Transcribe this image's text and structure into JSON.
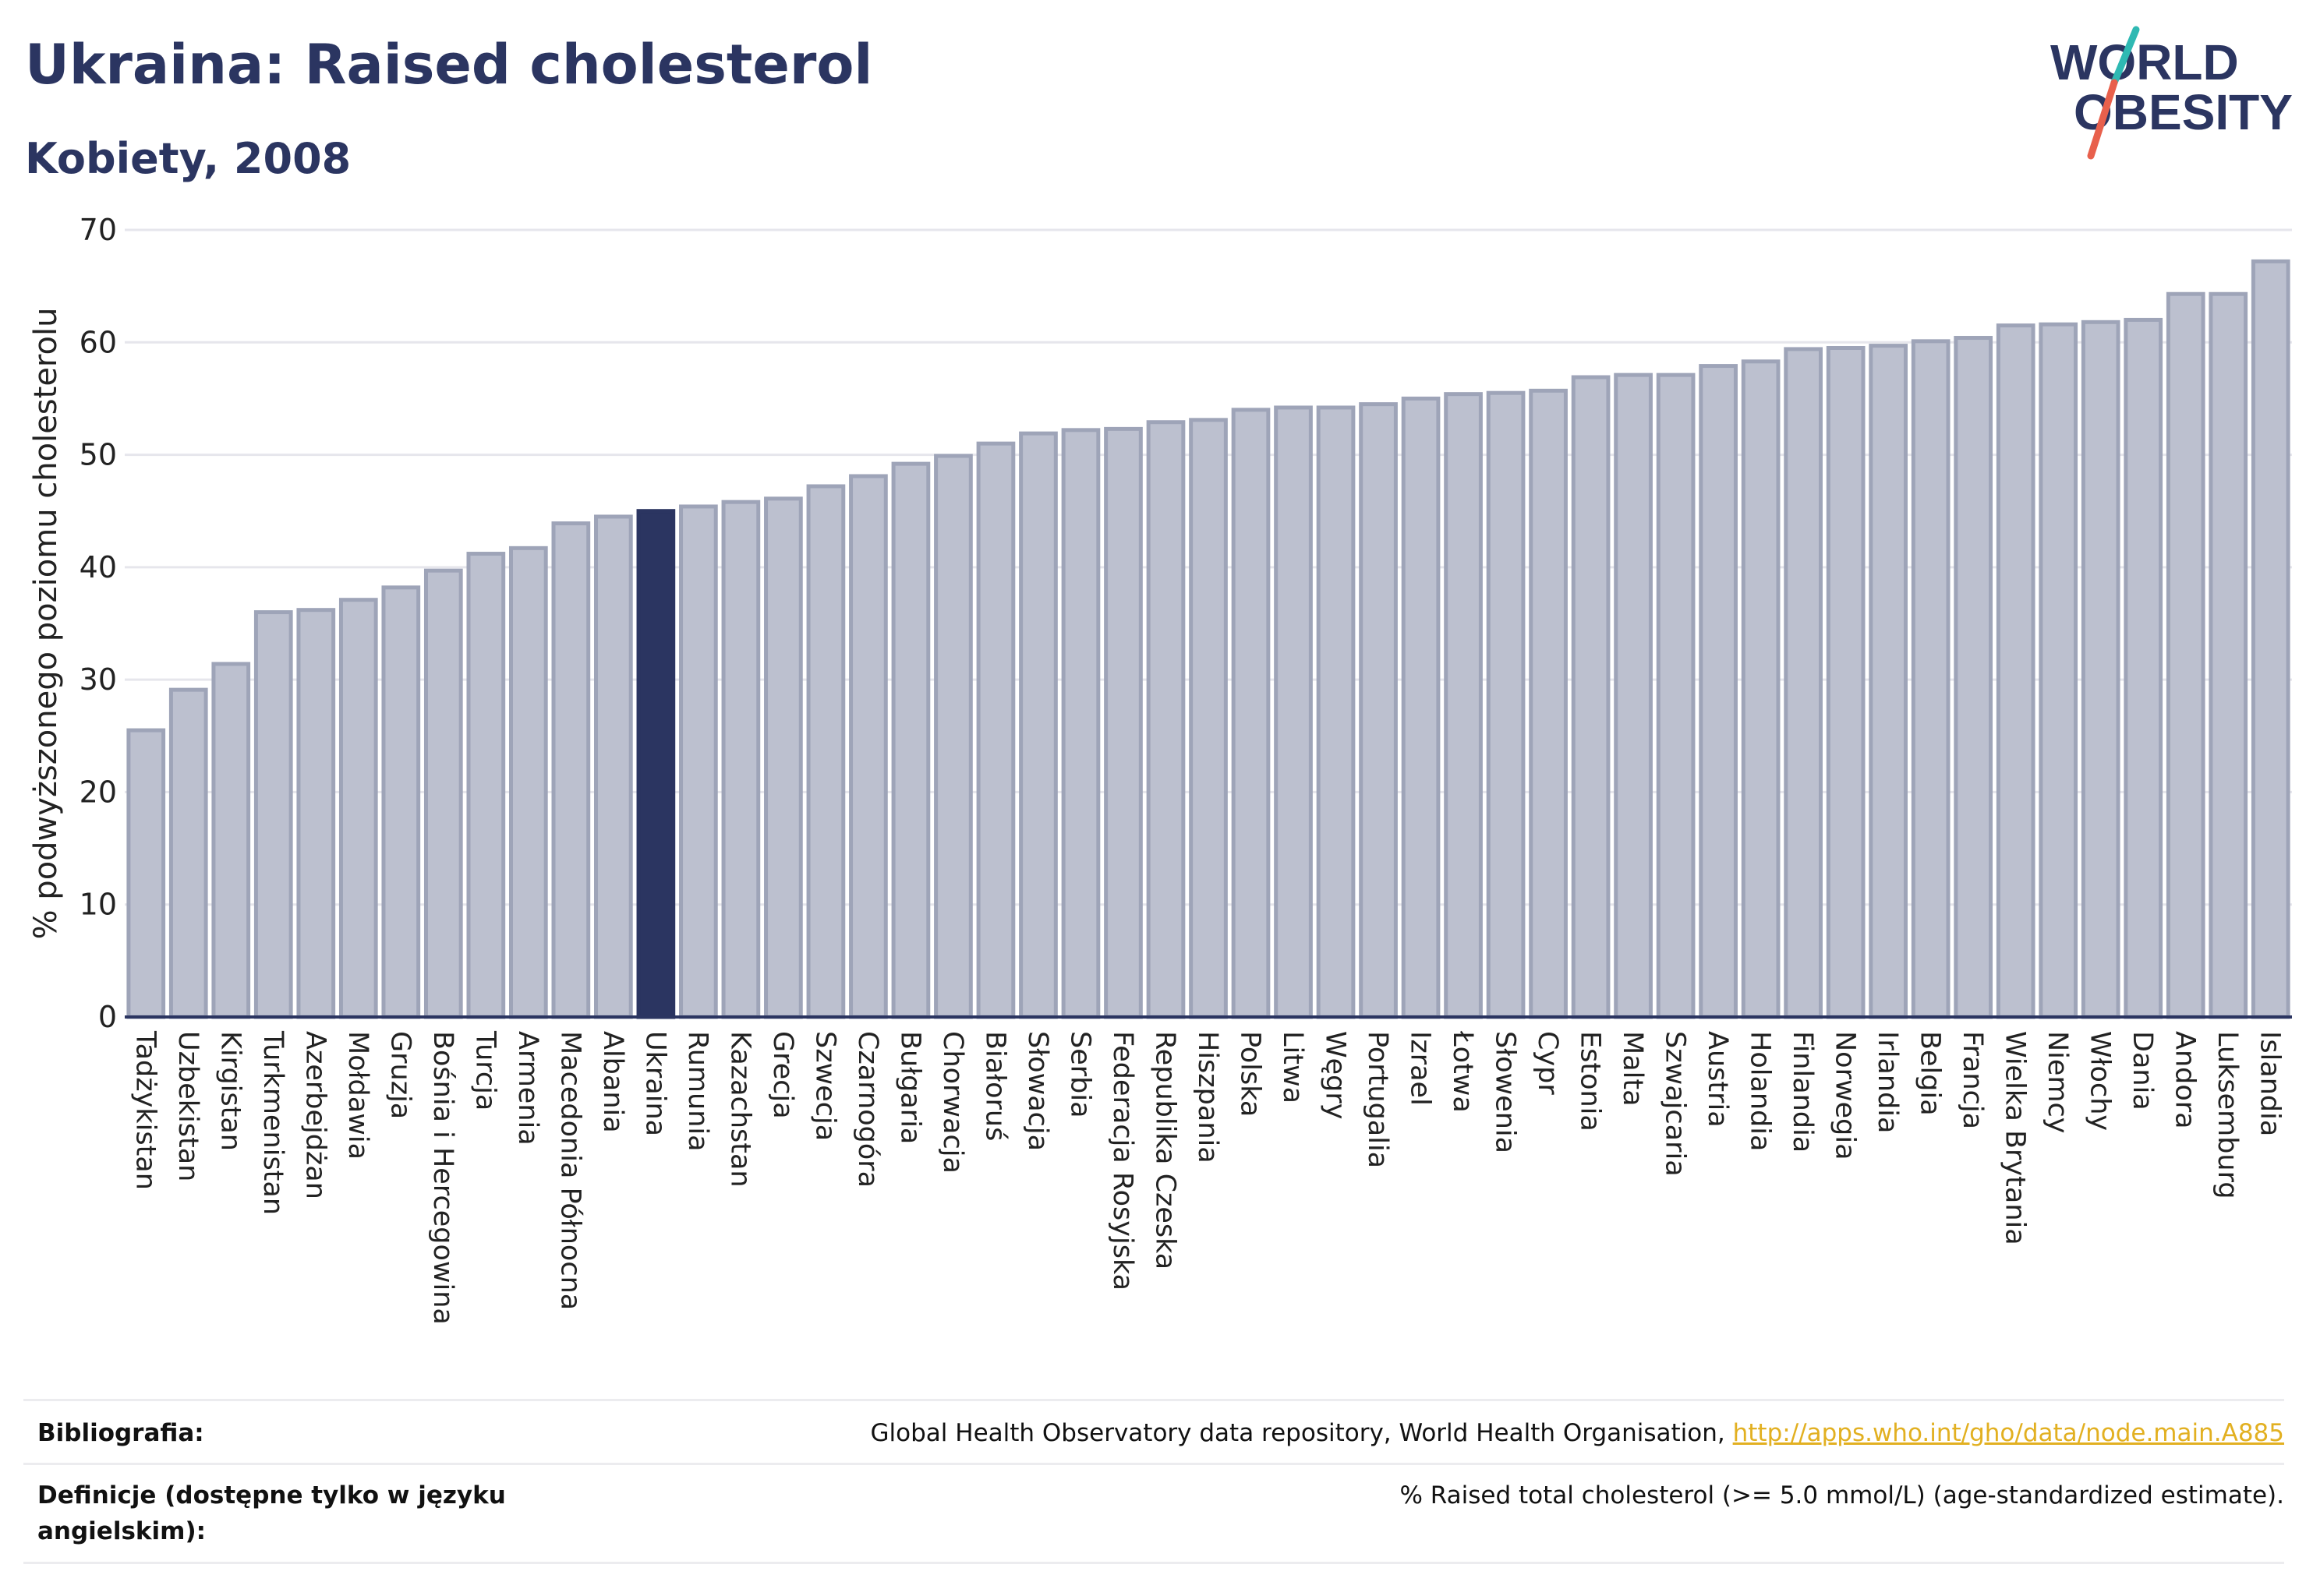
{
  "header": {
    "title": "Ukraina: Raised cholesterol",
    "subtitle": "Kobiety, 2008"
  },
  "logo": {
    "line1": "WORLD",
    "line2": "OBESITY",
    "text_color": "#2b3561",
    "accent_colors": [
      "#2fb9b3",
      "#e8604c"
    ]
  },
  "chart_data": {
    "type": "bar",
    "title": "Ukraina: Raised cholesterol",
    "subtitle": "Kobiety, 2008",
    "ylabel": "% podwyższonego poziomu cholesterolu",
    "xlabel": "",
    "ylim": [
      0,
      70
    ],
    "yticks": [
      0,
      10,
      20,
      30,
      40,
      50,
      60,
      70
    ],
    "grid": true,
    "highlight": "Ukraina",
    "colors": {
      "bar": "#bcc0cf",
      "bar_edge": "#9ea4b8",
      "highlight": "#2b3561",
      "grid": "#e6e6ec",
      "axis": "#2b3561"
    },
    "categories": [
      "Tadżykistan",
      "Uzbekistan",
      "Kirgistan",
      "Turkmenistan",
      "Azerbejdżan",
      "Mołdawia",
      "Gruzja",
      "Bośnia i Hercegowina",
      "Turcja",
      "Armenia",
      "Macedonia Północna",
      "Albania",
      "Ukraina",
      "Rumunia",
      "Kazachstan",
      "Grecja",
      "Szwecja",
      "Czarnogóra",
      "Bułgaria",
      "Chorwacja",
      "Białoruś",
      "Słowacja",
      "Serbia",
      "Federacja Rosyjska",
      "Republika Czeska",
      "Hiszpania",
      "Polska",
      "Litwa",
      "Węgry",
      "Portugalia",
      "Izrael",
      "Łotwa",
      "Słowenia",
      "Cypr",
      "Estonia",
      "Malta",
      "Szwajcaria",
      "Austria",
      "Holandia",
      "Finlandia",
      "Norwegia",
      "Irlandia",
      "Belgia",
      "Francja",
      "Wielka Brytania",
      "Niemcy",
      "Włochy",
      "Dania",
      "Andora",
      "Luksemburg",
      "Islandia"
    ],
    "values": [
      25.5,
      29.1,
      31.4,
      36.0,
      36.2,
      37.1,
      38.2,
      39.7,
      41.2,
      41.7,
      43.9,
      44.5,
      45.0,
      45.4,
      45.8,
      46.1,
      47.2,
      48.1,
      49.2,
      49.9,
      51.0,
      51.9,
      52.2,
      52.3,
      52.9,
      53.1,
      54.0,
      54.2,
      54.2,
      54.5,
      55.0,
      55.4,
      55.5,
      55.7,
      56.9,
      57.1,
      57.1,
      57.9,
      58.3,
      59.4,
      59.5,
      59.7,
      60.1,
      60.4,
      61.5,
      61.6,
      61.8,
      62.0,
      64.3,
      64.3,
      67.2
    ]
  },
  "footer": {
    "bibliography_label": "Bibliografia:",
    "bibliography_text": "Global Health Observatory data repository, World Health Organisation, ",
    "bibliography_link": "http://apps.who.int/gho/data/node.main.A885",
    "definitions_label_line1": "Definicje (dostępne tylko w języku",
    "definitions_label_line2": "angielskim):",
    "definitions_text": "% Raised total cholesterol (>= 5.0 mmol/L) (age-standardized estimate)."
  }
}
